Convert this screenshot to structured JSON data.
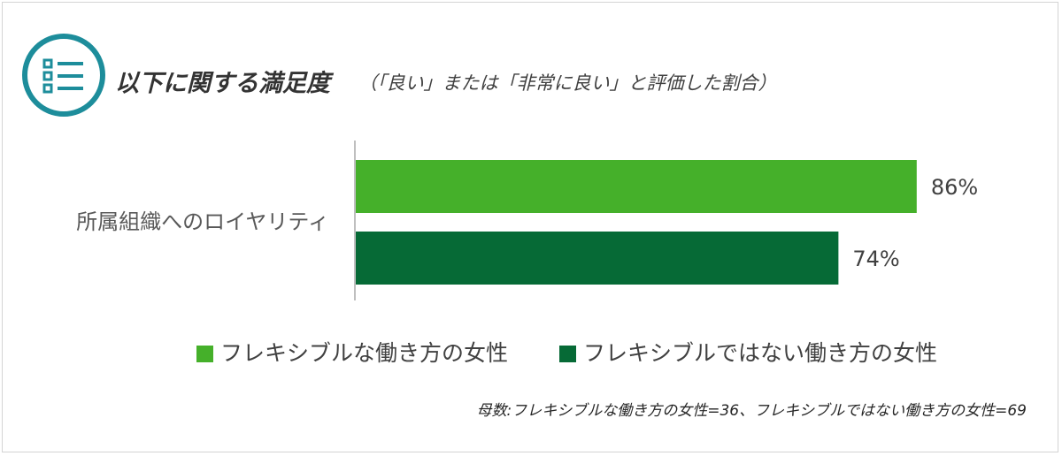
{
  "header": {
    "title": "以下に関する満足度",
    "subtitle": "（「良い」または「非常に良い」と評価した割合）",
    "icon": "list-icon",
    "icon_color": "#1d8d9b"
  },
  "chart_data": {
    "type": "bar",
    "orientation": "horizontal",
    "categories": [
      "所属組織へのロイヤリティ"
    ],
    "series": [
      {
        "name": "フレキシブルな働き方の女性",
        "values": [
          86
        ],
        "label": "86%",
        "color": "#45b02a"
      },
      {
        "name": "フレキシブルではない働き方の女性",
        "values": [
          74
        ],
        "label": "74%",
        "color": "#066a36"
      }
    ],
    "xlim": [
      0,
      100
    ],
    "unit": "%",
    "grid": false,
    "legend_position": "bottom"
  },
  "footnote": "母数:フレキシブルな働き方の女性=36、フレキシブルではない働き方の女性=69"
}
